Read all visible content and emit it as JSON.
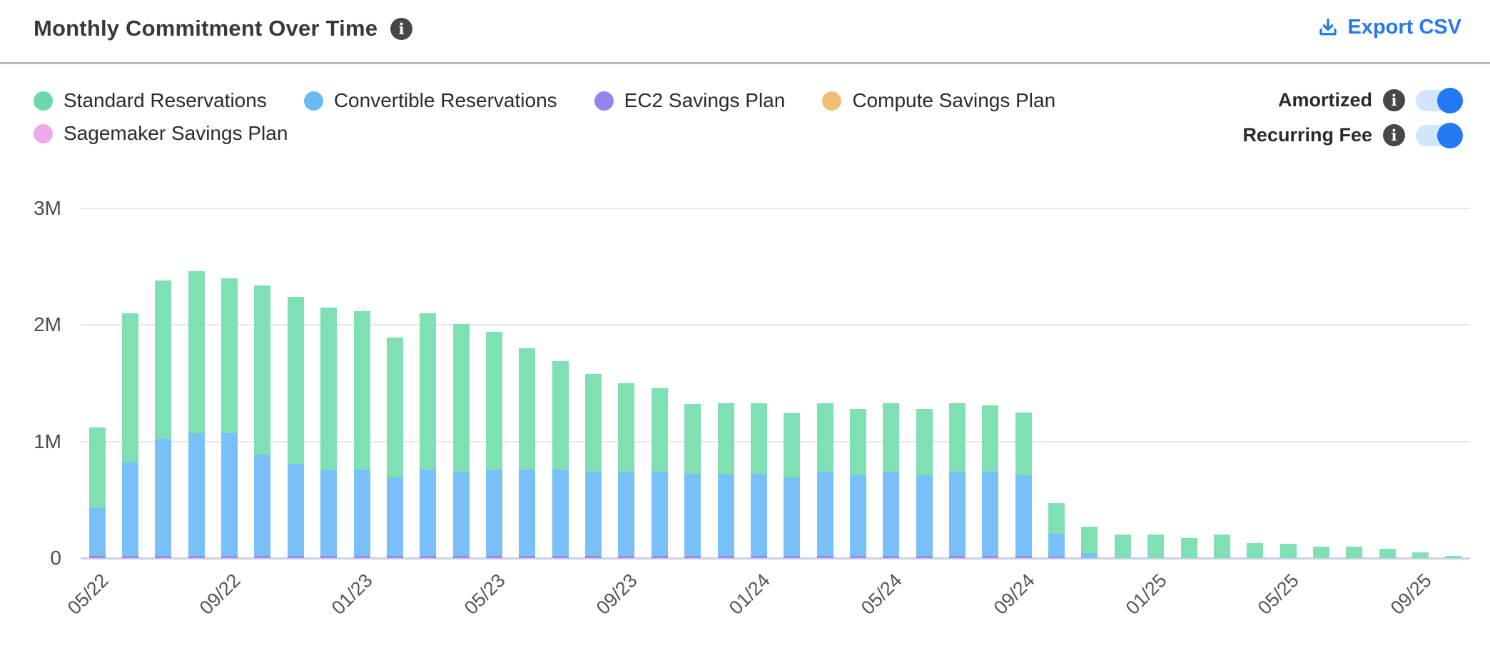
{
  "header": {
    "title": "Monthly Commitment Over Time",
    "export_label": "Export CSV"
  },
  "toggles": [
    {
      "label": "Amortized",
      "enabled": true
    },
    {
      "label": "Recurring Fee",
      "enabled": true
    }
  ],
  "colors": {
    "accent_blue": "#2577f2",
    "toggle_track": "#d3e5fc",
    "toggle_knob": "#2279f1",
    "info_badge": "#474747",
    "divider": "#b9b9b9",
    "gridline": "#e7e7e7",
    "axis_baseline": "#c8cfe7",
    "axis_text": "#4d4d4d"
  },
  "chart_data": {
    "type": "bar",
    "stacked": true,
    "title": "Monthly Commitment Over Time",
    "xlabel": "",
    "ylabel": "",
    "ylim": [
      0,
      3
    ],
    "y_unit": "M",
    "yticks": [
      "0",
      "1M",
      "2M",
      "3M"
    ],
    "grid": "horizontal",
    "legend_position": "top-left",
    "x": [
      "05/22",
      "06/22",
      "07/22",
      "08/22",
      "09/22",
      "10/22",
      "11/22",
      "12/22",
      "01/23",
      "02/23",
      "03/23",
      "04/23",
      "05/23",
      "06/23",
      "07/23",
      "08/23",
      "09/23",
      "10/23",
      "11/23",
      "12/23",
      "01/24",
      "02/24",
      "03/24",
      "04/24",
      "05/24",
      "06/24",
      "07/24",
      "08/24",
      "09/24",
      "10/24",
      "11/24",
      "12/24",
      "01/25",
      "02/25",
      "03/25",
      "04/25",
      "05/25",
      "06/25",
      "07/25",
      "08/25",
      "09/25",
      "10/25"
    ],
    "visible_x_ticks": [
      "05/22",
      "09/22",
      "01/23",
      "05/23",
      "09/23",
      "01/24",
      "05/24",
      "09/24",
      "01/25",
      "05/25",
      "09/25"
    ],
    "x_tick_every": 4,
    "stack_order_bottom_to_top": [
      "EC2 Savings Plan",
      "Convertible Reservations",
      "Standard Reservations",
      "Compute Savings Plan",
      "Sagemaker Savings Plan"
    ],
    "series": [
      {
        "name": "Standard Reservations",
        "legend_color": "#68d9a7",
        "color": "#7fe0b4",
        "values": [
          0.69,
          1.28,
          1.36,
          1.39,
          1.33,
          1.45,
          1.43,
          1.39,
          1.36,
          1.2,
          1.34,
          1.27,
          1.18,
          1.04,
          0.93,
          0.84,
          0.76,
          0.72,
          0.6,
          0.61,
          0.61,
          0.55,
          0.59,
          0.57,
          0.59,
          0.57,
          0.59,
          0.57,
          0.54,
          0.26,
          0.23,
          0.2,
          0.2,
          0.17,
          0.2,
          0.13,
          0.12,
          0.1,
          0.1,
          0.08,
          0.05,
          0.02
        ]
      },
      {
        "name": "Convertible Reservations",
        "legend_color": "#6cb9f7",
        "color": "#7ac0f8",
        "values": [
          0.41,
          0.8,
          1.0,
          1.05,
          1.05,
          0.87,
          0.79,
          0.74,
          0.74,
          0.67,
          0.74,
          0.72,
          0.74,
          0.74,
          0.74,
          0.72,
          0.72,
          0.72,
          0.7,
          0.7,
          0.7,
          0.67,
          0.72,
          0.69,
          0.72,
          0.69,
          0.72,
          0.72,
          0.69,
          0.2,
          0.04,
          0,
          0,
          0,
          0,
          0,
          0,
          0,
          0,
          0,
          0,
          0
        ]
      },
      {
        "name": "EC2 Savings Plan",
        "legend_color": "#9783ef",
        "color": "#9c88ee",
        "values": [
          0.02,
          0.02,
          0.02,
          0.02,
          0.02,
          0.02,
          0.02,
          0.02,
          0.02,
          0.02,
          0.02,
          0.02,
          0.02,
          0.02,
          0.02,
          0.02,
          0.02,
          0.02,
          0.02,
          0.02,
          0.02,
          0.02,
          0.02,
          0.02,
          0.02,
          0.02,
          0.02,
          0.02,
          0.02,
          0.01,
          0,
          0,
          0,
          0,
          0,
          0,
          0,
          0,
          0,
          0,
          0,
          0
        ]
      },
      {
        "name": "Compute Savings Plan",
        "legend_color": "#f3bd74",
        "color": "#f3bd74",
        "values": [
          0,
          0,
          0,
          0,
          0,
          0,
          0,
          0,
          0,
          0,
          0,
          0,
          0,
          0,
          0,
          0,
          0,
          0,
          0,
          0,
          0,
          0,
          0,
          0,
          0,
          0,
          0,
          0,
          0,
          0,
          0,
          0,
          0,
          0,
          0,
          0,
          0,
          0,
          0,
          0,
          0,
          0
        ]
      },
      {
        "name": "Sagemaker Savings Plan",
        "legend_color": "#efa9ea",
        "color": "#efa9ea",
        "values": [
          0,
          0,
          0,
          0,
          0,
          0,
          0,
          0,
          0,
          0,
          0,
          0,
          0,
          0,
          0,
          0,
          0,
          0,
          0,
          0,
          0,
          0,
          0,
          0,
          0,
          0,
          0,
          0,
          0,
          0,
          0,
          0,
          0,
          0,
          0,
          0,
          0,
          0,
          0,
          0,
          0,
          0
        ]
      }
    ]
  }
}
